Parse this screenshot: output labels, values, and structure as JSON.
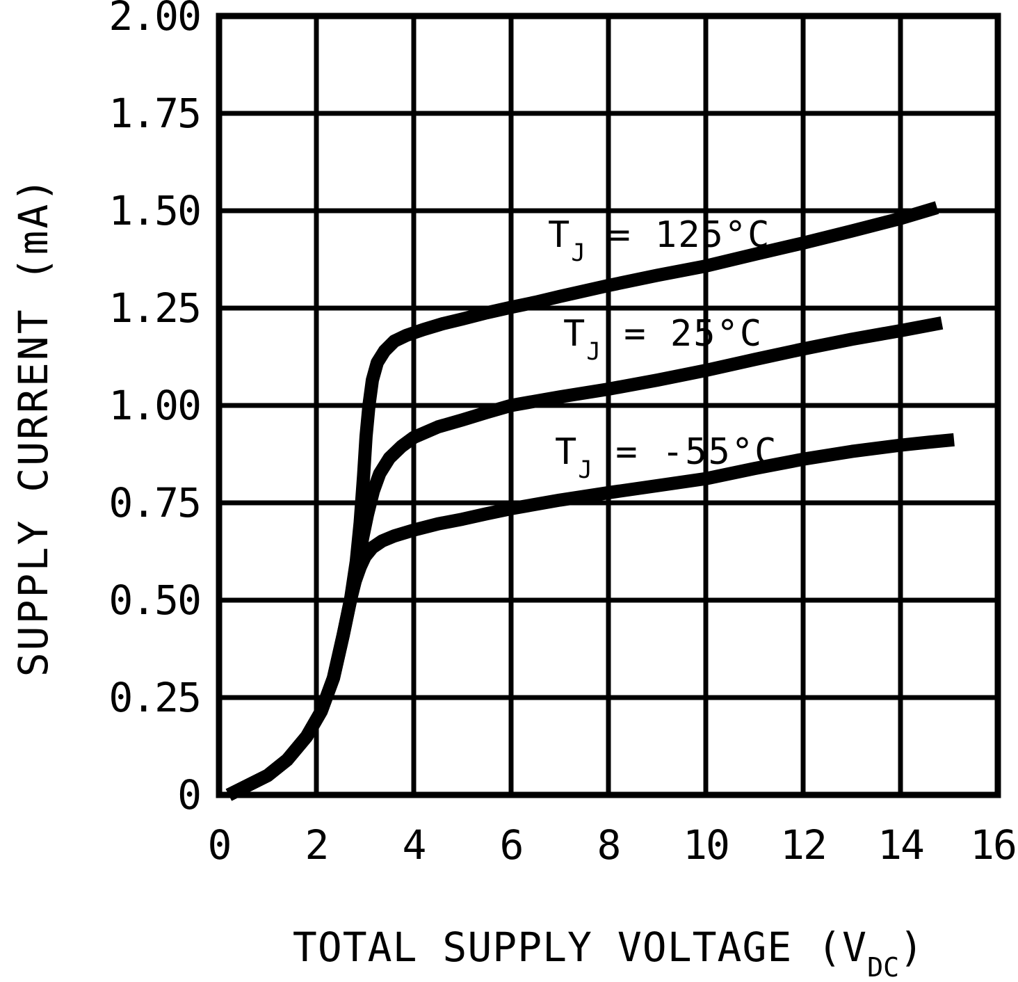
{
  "colors": {
    "line": "#000000",
    "background": "#ffffff",
    "grid": "#000000"
  },
  "chart_data": {
    "type": "line",
    "title": "",
    "xlabel": "TOTAL SUPPLY VOLTAGE (VDC)",
    "ylabel": "SUPPLY CURRENT (mA)",
    "xlabel_parts": {
      "main": "TOTAL SUPPLY VOLTAGE (V",
      "sub": "DC",
      "close": ")"
    },
    "x_axis": {
      "min": 0,
      "max": 16,
      "ticks": [
        0,
        2,
        4,
        6,
        8,
        10,
        12,
        14,
        16
      ],
      "tick_labels": [
        "0",
        "2",
        "4",
        "6",
        "8",
        "10",
        "12",
        "14",
        "16"
      ]
    },
    "y_axis": {
      "min": 0,
      "max": 2.0,
      "ticks": [
        0,
        0.25,
        0.5,
        0.75,
        1.0,
        1.25,
        1.5,
        1.75,
        2.0
      ],
      "tick_labels": [
        "0",
        "0.25",
        "0.50",
        "0.75",
        "1.00",
        "1.25",
        "1.50",
        "1.75",
        "2.00"
      ]
    },
    "grid": "on",
    "legend_position": "inline-labels",
    "series": [
      {
        "name": "TJ = 125°C",
        "temperature_c": 125,
        "label_parts": {
          "base": "T",
          "sub": "J",
          "rest": " = 125°C"
        },
        "points": [
          [
            0.2,
            0
          ],
          [
            0.6,
            0.025
          ],
          [
            1.0,
            0.05
          ],
          [
            1.4,
            0.09
          ],
          [
            1.8,
            0.15
          ],
          [
            2.1,
            0.215
          ],
          [
            2.35,
            0.3
          ],
          [
            2.55,
            0.41
          ],
          [
            2.7,
            0.5
          ],
          [
            2.82,
            0.6
          ],
          [
            2.9,
            0.7
          ],
          [
            2.97,
            0.82
          ],
          [
            3.02,
            0.92
          ],
          [
            3.08,
            1.0
          ],
          [
            3.15,
            1.065
          ],
          [
            3.25,
            1.11
          ],
          [
            3.4,
            1.14
          ],
          [
            3.6,
            1.165
          ],
          [
            3.85,
            1.18
          ],
          [
            4.2,
            1.195
          ],
          [
            4.6,
            1.21
          ],
          [
            5,
            1.222
          ],
          [
            5.5,
            1.238
          ],
          [
            6,
            1.252
          ],
          [
            6.5,
            1.265
          ],
          [
            7,
            1.28
          ],
          [
            8,
            1.308
          ],
          [
            9,
            1.334
          ],
          [
            10,
            1.358
          ],
          [
            11,
            1.388
          ],
          [
            12,
            1.417
          ],
          [
            13,
            1.448
          ],
          [
            14,
            1.48
          ],
          [
            14.75,
            1.508
          ]
        ]
      },
      {
        "name": "TJ = 25°C",
        "temperature_c": 25,
        "label_parts": {
          "base": "T",
          "sub": "J",
          "rest": " = 25°C"
        },
        "points": [
          [
            0.2,
            0
          ],
          [
            0.6,
            0.025
          ],
          [
            1.0,
            0.05
          ],
          [
            1.4,
            0.09
          ],
          [
            1.8,
            0.15
          ],
          [
            2.1,
            0.215
          ],
          [
            2.35,
            0.3
          ],
          [
            2.55,
            0.41
          ],
          [
            2.7,
            0.5
          ],
          [
            2.85,
            0.59
          ],
          [
            2.95,
            0.66
          ],
          [
            3.05,
            0.72
          ],
          [
            3.17,
            0.78
          ],
          [
            3.3,
            0.825
          ],
          [
            3.5,
            0.865
          ],
          [
            3.75,
            0.895
          ],
          [
            4,
            0.918
          ],
          [
            4.5,
            0.945
          ],
          [
            5,
            0.963
          ],
          [
            5.5,
            0.982
          ],
          [
            6,
            1.0
          ],
          [
            7,
            1.022
          ],
          [
            8,
            1.042
          ],
          [
            9,
            1.065
          ],
          [
            10,
            1.09
          ],
          [
            11,
            1.118
          ],
          [
            12,
            1.145
          ],
          [
            13,
            1.17
          ],
          [
            14,
            1.192
          ],
          [
            14.85,
            1.212
          ]
        ]
      },
      {
        "name": "TJ = -55°C",
        "temperature_c": -55,
        "label_parts": {
          "base": "T",
          "sub": "J",
          "rest": " = -55°C"
        },
        "points": [
          [
            0.2,
            0
          ],
          [
            0.6,
            0.025
          ],
          [
            1.0,
            0.05
          ],
          [
            1.4,
            0.09
          ],
          [
            1.8,
            0.15
          ],
          [
            2.1,
            0.215
          ],
          [
            2.35,
            0.3
          ],
          [
            2.55,
            0.41
          ],
          [
            2.7,
            0.5
          ],
          [
            2.8,
            0.55
          ],
          [
            2.9,
            0.585
          ],
          [
            3.0,
            0.612
          ],
          [
            3.15,
            0.635
          ],
          [
            3.35,
            0.652
          ],
          [
            3.6,
            0.665
          ],
          [
            4,
            0.68
          ],
          [
            4.5,
            0.696
          ],
          [
            5,
            0.708
          ],
          [
            5.5,
            0.722
          ],
          [
            6,
            0.735
          ],
          [
            7,
            0.757
          ],
          [
            8,
            0.776
          ],
          [
            9,
            0.794
          ],
          [
            10,
            0.812
          ],
          [
            11,
            0.838
          ],
          [
            12,
            0.862
          ],
          [
            13,
            0.882
          ],
          [
            14,
            0.898
          ],
          [
            14.6,
            0.906
          ],
          [
            15.1,
            0.912
          ]
        ]
      }
    ]
  }
}
